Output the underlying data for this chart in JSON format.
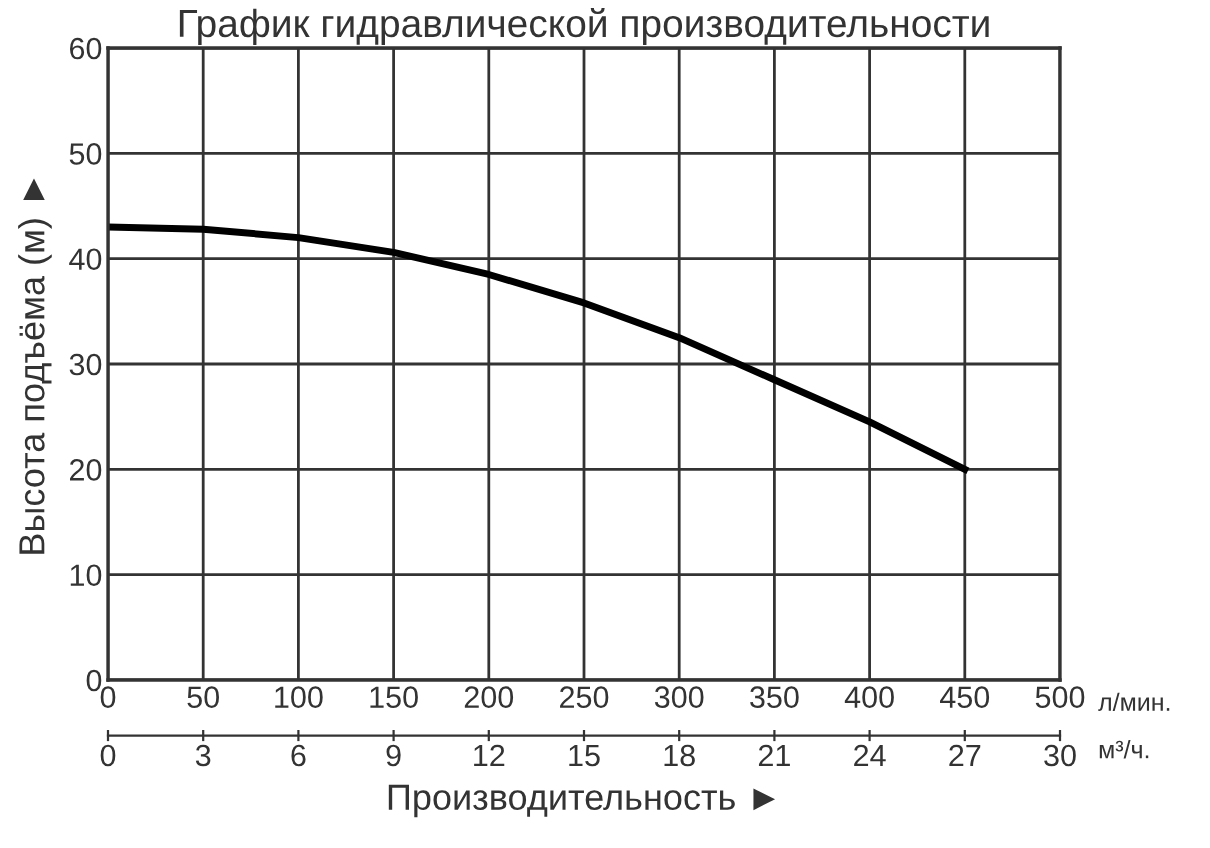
{
  "chart_data": {
    "type": "line",
    "title": "График гидравлической производительности",
    "xlabel": "Производительность ►",
    "ylabel": "Высота подъёма (м) ►",
    "x": [
      0,
      50,
      100,
      150,
      200,
      250,
      300,
      350,
      400,
      450
    ],
    "series": [
      {
        "color": "#000000",
        "values": [
          43,
          42.8,
          42,
          40.6,
          38.5,
          35.8,
          32.5,
          28.5,
          24.5,
          20
        ]
      }
    ],
    "xlim": [
      0,
      500
    ],
    "xticks": [
      0,
      50,
      100,
      150,
      200,
      250,
      300,
      350,
      400,
      450,
      500
    ],
    "ylim": [
      0,
      60
    ],
    "yticks": [
      0,
      10,
      20,
      30,
      40,
      50,
      60
    ],
    "x2lim": [
      0,
      30
    ],
    "x2ticks": [
      0,
      3,
      6,
      9,
      12,
      15,
      18,
      21,
      24,
      27,
      30
    ],
    "annotations": [
      "л/мин.",
      "м³/ч."
    ],
    "grid": true,
    "marker": "none",
    "line_style": "solid",
    "legend": false
  }
}
